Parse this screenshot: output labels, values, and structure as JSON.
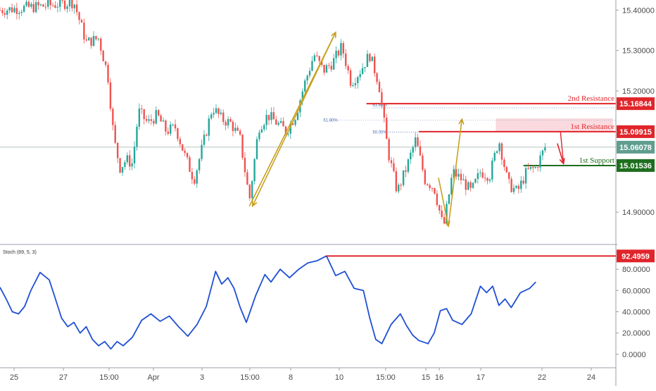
{
  "chart_data": [
    {
      "type": "candlestick",
      "title": "",
      "ylim": [
        14.82,
        15.425
      ],
      "y_ticks": [
        "15.40000",
        "15.30000",
        "15.20000",
        "14.90000"
      ],
      "x_ticks": [
        "25",
        "27",
        "15:00",
        "Apr",
        "3",
        "15:00",
        "8",
        "10",
        "15:00",
        "15",
        "16",
        "17",
        "22",
        "24"
      ],
      "close_series": [
        {
          "x": 0.0,
          "y": 15.4
        },
        {
          "x": 0.07,
          "y": 15.41
        },
        {
          "x": 0.12,
          "y": 15.42
        },
        {
          "x": 0.13,
          "y": 15.37
        },
        {
          "x": 0.14,
          "y": 15.32
        },
        {
          "x": 0.16,
          "y": 15.33
        },
        {
          "x": 0.175,
          "y": 15.24
        },
        {
          "x": 0.185,
          "y": 15.08
        },
        {
          "x": 0.195,
          "y": 15.01
        },
        {
          "x": 0.205,
          "y": 15.03
        },
        {
          "x": 0.215,
          "y": 15.02
        },
        {
          "x": 0.225,
          "y": 15.15
        },
        {
          "x": 0.24,
          "y": 15.12
        },
        {
          "x": 0.255,
          "y": 15.14
        },
        {
          "x": 0.27,
          "y": 15.1
        },
        {
          "x": 0.285,
          "y": 15.11
        },
        {
          "x": 0.3,
          "y": 15.04
        },
        {
          "x": 0.315,
          "y": 14.98
        },
        {
          "x": 0.33,
          "y": 15.07
        },
        {
          "x": 0.345,
          "y": 15.16
        },
        {
          "x": 0.36,
          "y": 15.13
        },
        {
          "x": 0.375,
          "y": 15.12
        },
        {
          "x": 0.39,
          "y": 15.08
        },
        {
          "x": 0.405,
          "y": 14.93
        },
        {
          "x": 0.42,
          "y": 15.11
        },
        {
          "x": 0.435,
          "y": 15.14
        },
        {
          "x": 0.45,
          "y": 15.12
        },
        {
          "x": 0.465,
          "y": 15.1
        },
        {
          "x": 0.48,
          "y": 15.14
        },
        {
          "x": 0.495,
          "y": 15.22
        },
        {
          "x": 0.51,
          "y": 15.29
        },
        {
          "x": 0.525,
          "y": 15.25
        },
        {
          "x": 0.54,
          "y": 15.27
        },
        {
          "x": 0.555,
          "y": 15.31
        },
        {
          "x": 0.57,
          "y": 15.22
        },
        {
          "x": 0.585,
          "y": 15.25
        },
        {
          "x": 0.6,
          "y": 15.29
        },
        {
          "x": 0.615,
          "y": 15.22
        },
        {
          "x": 0.63,
          "y": 15.05
        },
        {
          "x": 0.645,
          "y": 14.95
        },
        {
          "x": 0.66,
          "y": 15.01
        },
        {
          "x": 0.675,
          "y": 15.08
        },
        {
          "x": 0.69,
          "y": 14.98
        },
        {
          "x": 0.705,
          "y": 14.96
        },
        {
          "x": 0.72,
          "y": 14.86
        },
        {
          "x": 0.735,
          "y": 15.0
        },
        {
          "x": 0.75,
          "y": 14.98
        },
        {
          "x": 0.765,
          "y": 14.95
        },
        {
          "x": 0.78,
          "y": 15.0
        },
        {
          "x": 0.795,
          "y": 14.99
        },
        {
          "x": 0.81,
          "y": 15.08
        },
        {
          "x": 0.825,
          "y": 14.97
        },
        {
          "x": 0.84,
          "y": 14.95
        },
        {
          "x": 0.855,
          "y": 15.0
        },
        {
          "x": 0.87,
          "y": 15.01
        },
        {
          "x": 0.885,
          "y": 15.06
        }
      ],
      "price_badges": [
        {
          "value": "15.16844",
          "price": 15.16844,
          "color": "#e0252b"
        },
        {
          "value": "15.09915",
          "price": 15.09915,
          "color": "#e0252b"
        },
        {
          "value": "15.06078",
          "price": 15.06078,
          "color": "#5f9e8f"
        },
        {
          "value": "15.01536",
          "price": 15.01536,
          "color": "#1e6e1e"
        }
      ],
      "levels": [
        {
          "label": "2nd Resistance",
          "price": 15.16844,
          "from_x": 0.595,
          "color": "#e0252b"
        },
        {
          "label": "1st Resistance",
          "price": 15.09915,
          "from_x": 0.68,
          "color": "#e0252b"
        },
        {
          "label": "1st Support",
          "price": 15.01536,
          "from_x": 0.85,
          "color": "#1e6e1e"
        }
      ],
      "fib_labels": [
        {
          "label": "61.80%",
          "price": 15.165,
          "x": 0.605
        },
        {
          "label": "61.80%",
          "price": 15.128,
          "x": 0.525
        },
        {
          "label": "50.00%",
          "price": 15.098,
          "x": 0.605
        }
      ],
      "current_price": 15.06078,
      "colors": {
        "up": "#26a69a",
        "down": "#ef5350",
        "arrow_gold": "#c8a020",
        "arrow_red": "#e0252b"
      }
    },
    {
      "type": "line",
      "title": "Stoch (89, 5, 3)",
      "ylim": [
        0,
        100
      ],
      "y_ticks": [
        "80.0000",
        "60.0000",
        "40.0000",
        "20.0000",
        "0.0000"
      ],
      "y_tick_values": [
        80,
        60,
        40,
        20,
        0
      ],
      "series": [
        {
          "color": "#1f4fd4",
          "points": [
            {
              "x": 0.0,
              "y": 63
            },
            {
              "x": 0.01,
              "y": 52
            },
            {
              "x": 0.02,
              "y": 40
            },
            {
              "x": 0.03,
              "y": 38
            },
            {
              "x": 0.04,
              "y": 45
            },
            {
              "x": 0.05,
              "y": 60
            },
            {
              "x": 0.065,
              "y": 77
            },
            {
              "x": 0.08,
              "y": 70
            },
            {
              "x": 0.09,
              "y": 52
            },
            {
              "x": 0.1,
              "y": 34
            },
            {
              "x": 0.11,
              "y": 26
            },
            {
              "x": 0.12,
              "y": 30
            },
            {
              "x": 0.13,
              "y": 20
            },
            {
              "x": 0.14,
              "y": 26
            },
            {
              "x": 0.15,
              "y": 14
            },
            {
              "x": 0.16,
              "y": 8
            },
            {
              "x": 0.17,
              "y": 12
            },
            {
              "x": 0.18,
              "y": 5
            },
            {
              "x": 0.19,
              "y": 12
            },
            {
              "x": 0.2,
              "y": 8
            },
            {
              "x": 0.215,
              "y": 16
            },
            {
              "x": 0.23,
              "y": 32
            },
            {
              "x": 0.245,
              "y": 38
            },
            {
              "x": 0.26,
              "y": 31
            },
            {
              "x": 0.275,
              "y": 36
            },
            {
              "x": 0.29,
              "y": 26
            },
            {
              "x": 0.305,
              "y": 17
            },
            {
              "x": 0.32,
              "y": 28
            },
            {
              "x": 0.335,
              "y": 45
            },
            {
              "x": 0.35,
              "y": 78
            },
            {
              "x": 0.36,
              "y": 66
            },
            {
              "x": 0.37,
              "y": 72
            },
            {
              "x": 0.38,
              "y": 62
            },
            {
              "x": 0.39,
              "y": 44
            },
            {
              "x": 0.4,
              "y": 30
            },
            {
              "x": 0.415,
              "y": 55
            },
            {
              "x": 0.43,
              "y": 75
            },
            {
              "x": 0.44,
              "y": 68
            },
            {
              "x": 0.455,
              "y": 80
            },
            {
              "x": 0.47,
              "y": 72
            },
            {
              "x": 0.485,
              "y": 80
            },
            {
              "x": 0.5,
              "y": 86
            },
            {
              "x": 0.515,
              "y": 88
            },
            {
              "x": 0.53,
              "y": 92.5
            },
            {
              "x": 0.545,
              "y": 74
            },
            {
              "x": 0.56,
              "y": 78
            },
            {
              "x": 0.575,
              "y": 62
            },
            {
              "x": 0.59,
              "y": 60
            },
            {
              "x": 0.6,
              "y": 35
            },
            {
              "x": 0.61,
              "y": 14
            },
            {
              "x": 0.62,
              "y": 10
            },
            {
              "x": 0.635,
              "y": 28
            },
            {
              "x": 0.65,
              "y": 38
            },
            {
              "x": 0.66,
              "y": 27
            },
            {
              "x": 0.67,
              "y": 18
            },
            {
              "x": 0.68,
              "y": 13
            },
            {
              "x": 0.695,
              "y": 10
            },
            {
              "x": 0.705,
              "y": 20
            },
            {
              "x": 0.715,
              "y": 41
            },
            {
              "x": 0.725,
              "y": 43
            },
            {
              "x": 0.735,
              "y": 32
            },
            {
              "x": 0.75,
              "y": 28
            },
            {
              "x": 0.765,
              "y": 38
            },
            {
              "x": 0.78,
              "y": 64
            },
            {
              "x": 0.79,
              "y": 58
            },
            {
              "x": 0.8,
              "y": 64
            },
            {
              "x": 0.81,
              "y": 46
            },
            {
              "x": 0.82,
              "y": 52
            },
            {
              "x": 0.83,
              "y": 44
            },
            {
              "x": 0.845,
              "y": 58
            },
            {
              "x": 0.86,
              "y": 62
            },
            {
              "x": 0.87,
              "y": 68
            }
          ]
        }
      ],
      "highlight": {
        "value": "92.4959",
        "price": 92.4959,
        "from_x": 0.53,
        "color": "#e0252b"
      }
    }
  ]
}
